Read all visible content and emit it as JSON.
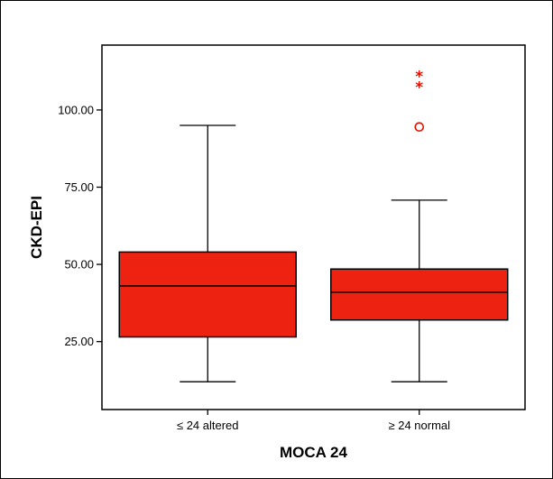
{
  "chart_data": {
    "type": "boxplot",
    "title": "",
    "xlabel": "MOCA 24",
    "ylabel": "CKD-EPI",
    "ylim": [
      3,
      121
    ],
    "y_ticks": [
      25,
      50,
      75,
      100
    ],
    "y_tick_labels": [
      "25.00",
      "50.00",
      "75.00",
      "100.00"
    ],
    "grid": false,
    "box_color": "#ee2211",
    "outlier_color": "#dd1100",
    "categories": [
      "≤ 24 altered",
      "≥ 24 normal"
    ],
    "boxes": [
      {
        "category": "≤ 24 altered",
        "min": 12,
        "q1": 26.5,
        "median": 43,
        "q3": 54,
        "max": 95,
        "outliers": [],
        "extremes": []
      },
      {
        "category": "≥ 24 normal",
        "min": 12,
        "q1": 32,
        "median": 41,
        "q3": 48.5,
        "max": 70.8,
        "outliers": [
          94.5
        ],
        "extremes": [
          108,
          111.5
        ]
      }
    ]
  }
}
